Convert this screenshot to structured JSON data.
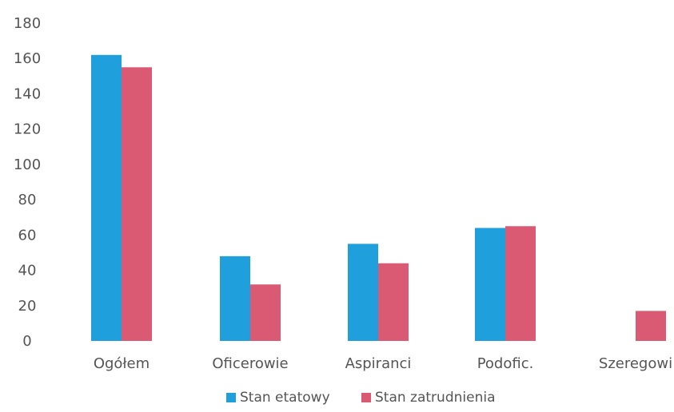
{
  "chart_data": {
    "type": "bar",
    "categories": [
      "Ogółem",
      "Oficerowie",
      "Aspiranci",
      "Podofic.",
      "Szeregowi"
    ],
    "series": [
      {
        "name": "Stan etatowy",
        "color": "#1f9fdc",
        "values": [
          162,
          48,
          55,
          64,
          null
        ]
      },
      {
        "name": "Stan zatrudnienia",
        "color": "#d95a72",
        "values": [
          155,
          32,
          44,
          65,
          17
        ]
      }
    ],
    "ylim": [
      0,
      180
    ],
    "yticks": [
      0,
      20,
      40,
      60,
      80,
      100,
      120,
      140,
      160,
      180
    ],
    "grid": false,
    "legend_position": "bottom-center"
  }
}
